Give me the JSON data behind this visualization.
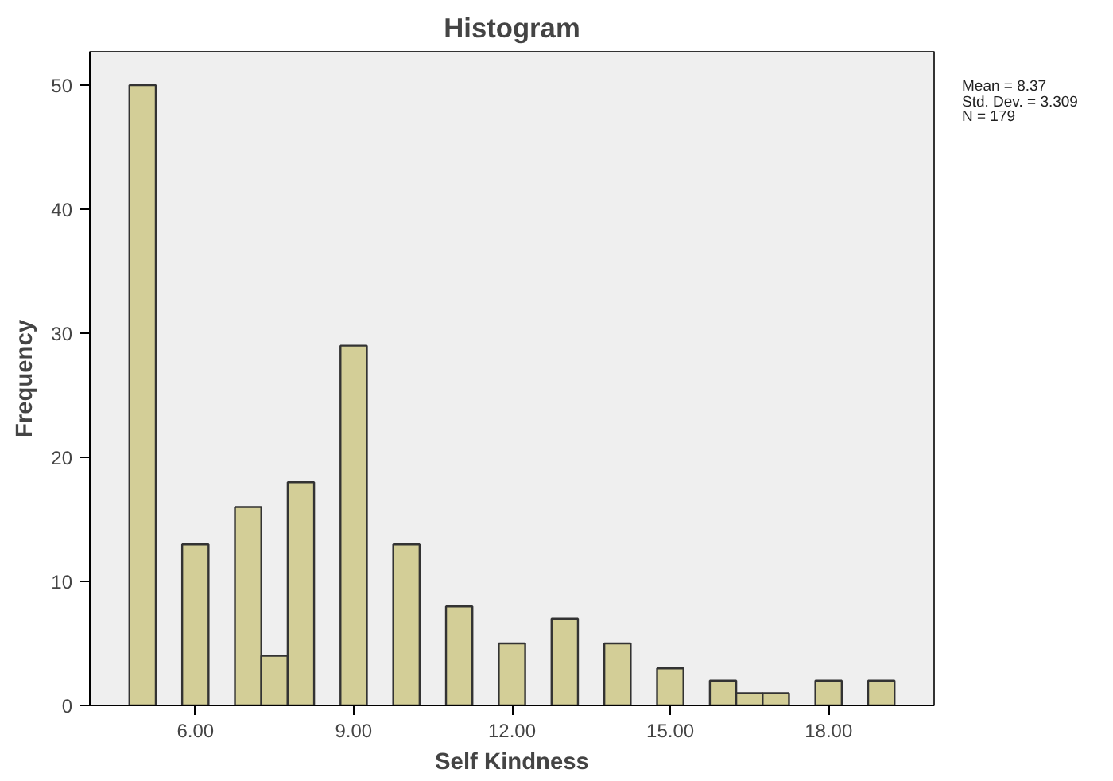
{
  "chart_data": {
    "type": "histogram",
    "title": "Histogram",
    "xlabel": "Self Kindness",
    "ylabel": "Frequency",
    "annotations": [
      "Mean = 8.37",
      "Std. Dev. = 3.309",
      "N = 179"
    ],
    "bins": [
      4.75,
      5.25,
      5.75,
      6.25,
      6.75,
      7.25,
      7.75,
      8.25,
      8.75,
      9.25,
      9.75,
      10.25,
      10.75,
      11.25,
      11.75,
      12.25,
      12.75,
      13.25,
      13.75,
      14.25,
      14.75,
      15.25,
      15.75,
      16.25,
      16.75,
      17.25,
      17.75,
      18.25,
      18.75,
      19.25
    ],
    "values": [
      50,
      0,
      13,
      0,
      16,
      4,
      18,
      0,
      29,
      0,
      13,
      0,
      8,
      0,
      5,
      0,
      7,
      0,
      5,
      0,
      3,
      0,
      2,
      1,
      1,
      0,
      2,
      0,
      2
    ],
    "color": "#d3ce97",
    "xlim": [
      4.0,
      20.0
    ],
    "ylim": [
      0,
      52.7
    ],
    "xticks": [
      {
        "value": 6,
        "label": "6.00"
      },
      {
        "value": 9,
        "label": "9.00"
      },
      {
        "value": 12,
        "label": "12.00"
      },
      {
        "value": 15,
        "label": "15.00"
      },
      {
        "value": 18,
        "label": "18.00"
      }
    ],
    "yticks": [
      0,
      10,
      20,
      30,
      40,
      50
    ],
    "grid": false
  }
}
